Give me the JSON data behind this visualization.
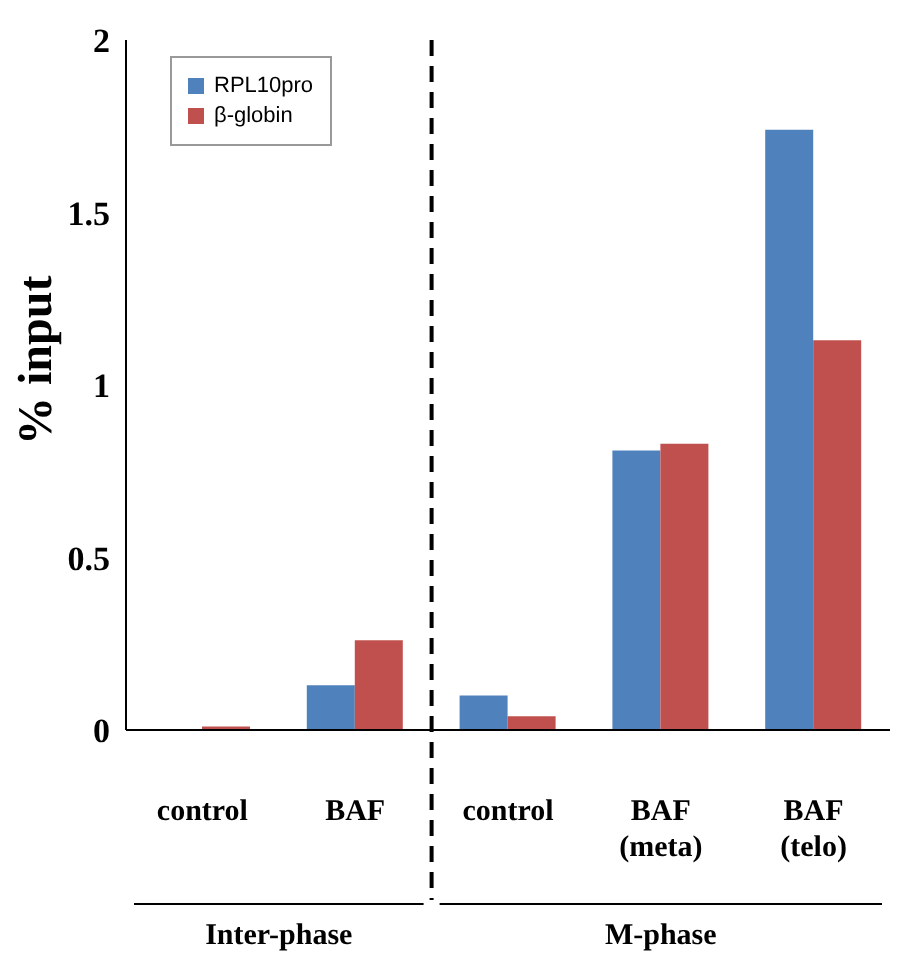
{
  "chart_data": {
    "type": "bar",
    "ylabel": "% input",
    "categories": [
      "control",
      "BAF",
      "control",
      "BAF (meta)",
      "BAF (telo)"
    ],
    "series": [
      {
        "name": "RPL10pro",
        "color": "#4f81bd",
        "values": [
          0,
          0.13,
          0.1,
          0.81,
          1.74
        ]
      },
      {
        "name": "β-globin",
        "color": "#c0504d",
        "values": [
          0.01,
          0.26,
          0.04,
          0.83,
          1.13
        ]
      }
    ],
    "ylim": [
      0,
      2
    ],
    "yticks": [
      0,
      0.5,
      1,
      1.5,
      2
    ],
    "legend": "top left",
    "annotations": [
      "Inter-phase",
      "M-phase"
    ]
  }
}
